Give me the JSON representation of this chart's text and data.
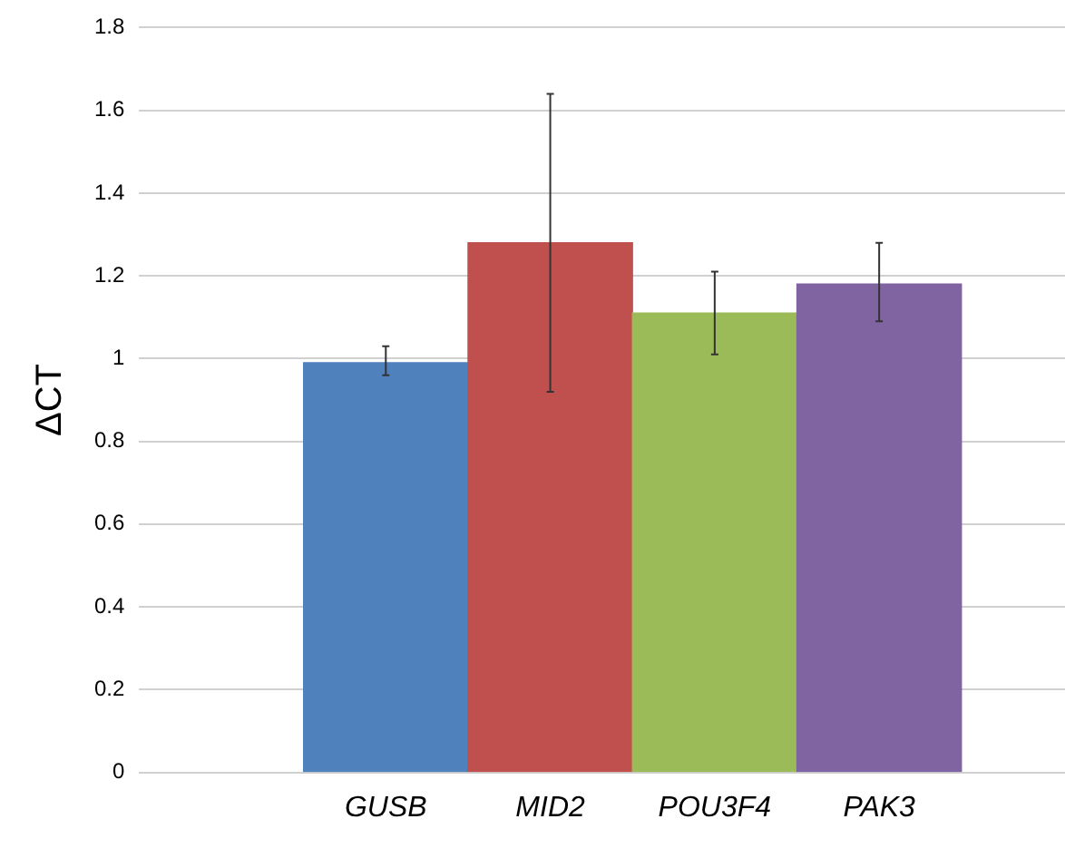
{
  "chart_data": {
    "type": "bar",
    "ylabel": "ΔCT",
    "categories": [
      "GUSB",
      "MID2",
      "POU3F4",
      "PAK3"
    ],
    "values": [
      0.99,
      1.28,
      1.11,
      1.18
    ],
    "colors": [
      "#4f81bd",
      "#c0504d",
      "#9bbb59",
      "#8064a2"
    ],
    "errors": [
      [
        0.96,
        1.03
      ],
      [
        0.92,
        1.64
      ],
      [
        1.01,
        1.21
      ],
      [
        1.09,
        1.28
      ]
    ],
    "ylim": [
      0,
      1.8
    ],
    "yticks": [
      0,
      0.2,
      0.4,
      0.6,
      0.8,
      1,
      1.2,
      1.4,
      1.6,
      1.8
    ],
    "grid": "y"
  }
}
